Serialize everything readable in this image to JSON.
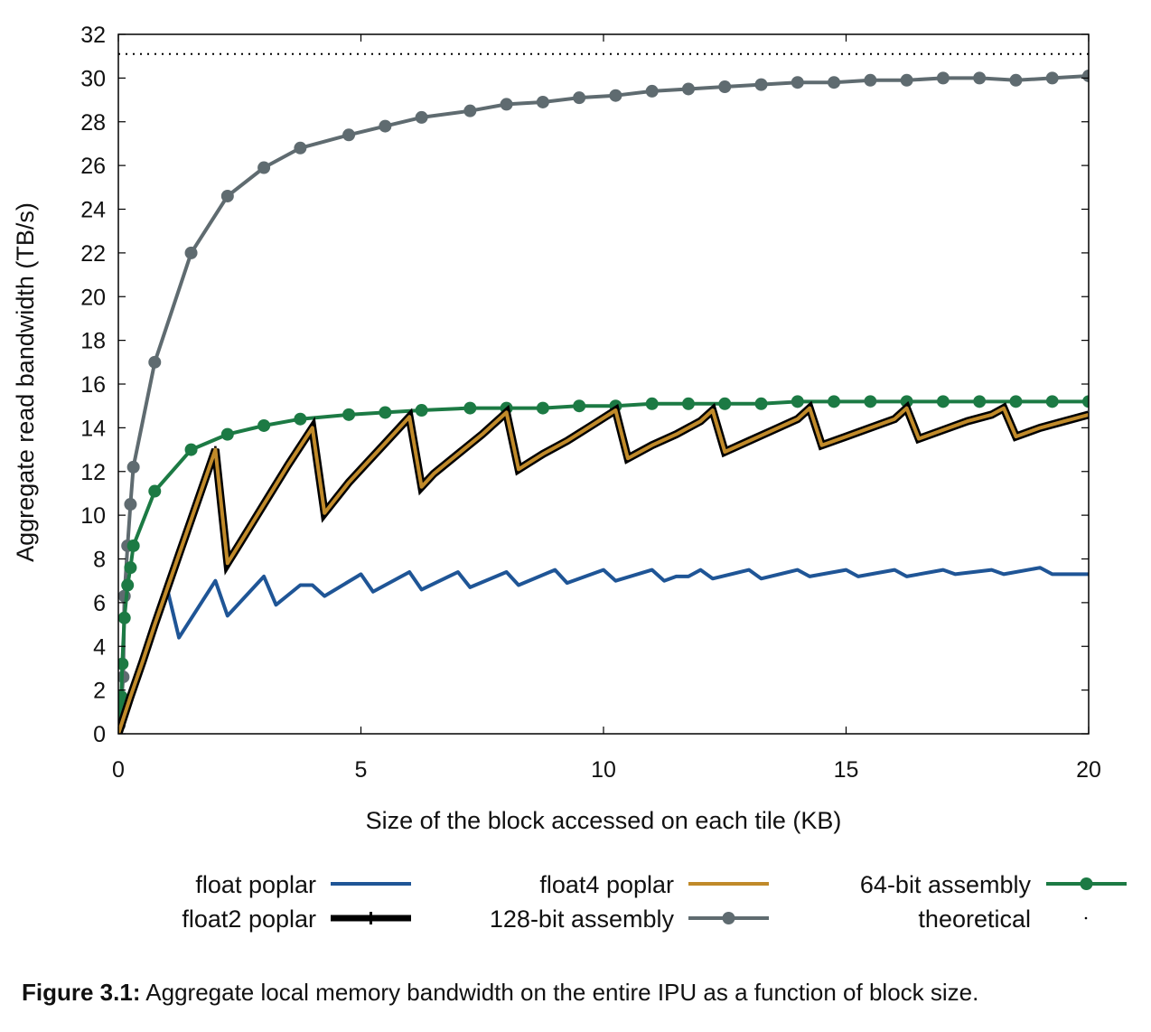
{
  "chart_data": {
    "type": "line",
    "xlabel": "Size of the block accessed on each tile (KB)",
    "ylabel": "Aggregate read bandwidth (TB/s)",
    "xlim": [
      0,
      20
    ],
    "ylim": [
      0,
      32
    ],
    "x_ticks": [
      "0",
      "5",
      "10",
      "15",
      "20"
    ],
    "y_ticks": [
      "0",
      "2",
      "4",
      "6",
      "8",
      "10",
      "12",
      "14",
      "16",
      "18",
      "20",
      "22",
      "24",
      "26",
      "28",
      "30",
      "32"
    ],
    "grid": false,
    "legend_position": "bottom",
    "series": [
      {
        "name": "float  poplar",
        "color": "#1f5596",
        "marker": "none",
        "points": [
          [
            0,
            0
          ],
          [
            0.25,
            1.7
          ],
          [
            0.5,
            3.4
          ],
          [
            0.75,
            5.1
          ],
          [
            1.0,
            6.7
          ],
          [
            1.25,
            4.4
          ],
          [
            2.0,
            7.0
          ],
          [
            2.25,
            5.4
          ],
          [
            3.0,
            7.2
          ],
          [
            3.25,
            5.9
          ],
          [
            3.75,
            6.8
          ],
          [
            4.0,
            6.8
          ],
          [
            4.25,
            6.3
          ],
          [
            5.0,
            7.3
          ],
          [
            5.25,
            6.5
          ],
          [
            6.0,
            7.4
          ],
          [
            6.25,
            6.6
          ],
          [
            7.0,
            7.4
          ],
          [
            7.25,
            6.7
          ],
          [
            8.0,
            7.4
          ],
          [
            8.25,
            6.8
          ],
          [
            9.0,
            7.5
          ],
          [
            9.25,
            6.9
          ],
          [
            10.0,
            7.5
          ],
          [
            10.25,
            7.0
          ],
          [
            11.0,
            7.5
          ],
          [
            11.25,
            7.0
          ],
          [
            11.5,
            7.2
          ],
          [
            11.75,
            7.2
          ],
          [
            12.0,
            7.5
          ],
          [
            12.25,
            7.1
          ],
          [
            13.0,
            7.5
          ],
          [
            13.25,
            7.1
          ],
          [
            14.0,
            7.5
          ],
          [
            14.25,
            7.2
          ],
          [
            15.0,
            7.5
          ],
          [
            15.25,
            7.2
          ],
          [
            16.0,
            7.5
          ],
          [
            16.25,
            7.2
          ],
          [
            17.0,
            7.5
          ],
          [
            17.25,
            7.3
          ],
          [
            18.0,
            7.5
          ],
          [
            18.25,
            7.3
          ],
          [
            19.0,
            7.6
          ],
          [
            19.25,
            7.3
          ],
          [
            20.0,
            7.3
          ]
        ]
      },
      {
        "name": "float2 poplar",
        "color": "#000000",
        "marker": "plus",
        "points": [
          [
            0,
            0
          ],
          [
            0.25,
            1.7
          ],
          [
            0.5,
            3.3
          ],
          [
            0.75,
            5.0
          ],
          [
            1.0,
            6.6
          ],
          [
            1.25,
            8.2
          ],
          [
            1.5,
            9.8
          ],
          [
            1.75,
            11.4
          ],
          [
            2.0,
            13.0
          ],
          [
            2.25,
            7.8
          ],
          [
            2.5,
            8.7
          ],
          [
            2.75,
            9.6
          ],
          [
            3.0,
            10.5
          ],
          [
            3.25,
            11.4
          ],
          [
            3.5,
            12.3
          ],
          [
            4.0,
            14.0
          ],
          [
            4.25,
            10.1
          ],
          [
            4.5,
            10.8
          ],
          [
            4.75,
            11.5
          ],
          [
            5.0,
            12.1
          ],
          [
            5.5,
            13.3
          ],
          [
            6.0,
            14.5
          ],
          [
            6.25,
            11.3
          ],
          [
            6.5,
            11.9
          ],
          [
            7.0,
            12.8
          ],
          [
            7.5,
            13.7
          ],
          [
            8.0,
            14.7
          ],
          [
            8.25,
            12.1
          ],
          [
            8.75,
            12.8
          ],
          [
            9.25,
            13.4
          ],
          [
            9.75,
            14.1
          ],
          [
            10.25,
            14.8
          ],
          [
            10.5,
            12.6
          ],
          [
            11.0,
            13.2
          ],
          [
            11.5,
            13.7
          ],
          [
            12.0,
            14.3
          ],
          [
            12.25,
            14.8
          ],
          [
            12.5,
            12.9
          ],
          [
            13.0,
            13.4
          ],
          [
            13.5,
            13.9
          ],
          [
            14.0,
            14.4
          ],
          [
            14.25,
            14.9
          ],
          [
            14.5,
            13.2
          ],
          [
            15.0,
            13.6
          ],
          [
            15.5,
            14.0
          ],
          [
            16.0,
            14.4
          ],
          [
            16.25,
            14.9
          ],
          [
            16.5,
            13.5
          ],
          [
            17.0,
            13.9
          ],
          [
            17.5,
            14.3
          ],
          [
            18.0,
            14.6
          ],
          [
            18.25,
            14.9
          ],
          [
            18.5,
            13.6
          ],
          [
            19.0,
            14.0
          ],
          [
            19.5,
            14.3
          ],
          [
            20.0,
            14.6
          ]
        ]
      },
      {
        "name": "float4 poplar",
        "color": "#c08a2a",
        "marker": "none",
        "points": [
          [
            0,
            0
          ],
          [
            0.25,
            1.7
          ],
          [
            0.5,
            3.3
          ],
          [
            0.75,
            5.0
          ],
          [
            1.0,
            6.6
          ],
          [
            1.25,
            8.2
          ],
          [
            1.5,
            9.8
          ],
          [
            1.75,
            11.4
          ],
          [
            2.0,
            13.0
          ],
          [
            2.25,
            7.8
          ],
          [
            2.5,
            8.7
          ],
          [
            2.75,
            9.6
          ],
          [
            3.0,
            10.5
          ],
          [
            3.25,
            11.4
          ],
          [
            3.5,
            12.3
          ],
          [
            4.0,
            14.0
          ],
          [
            4.25,
            10.1
          ],
          [
            4.5,
            10.8
          ],
          [
            4.75,
            11.5
          ],
          [
            5.0,
            12.1
          ],
          [
            5.5,
            13.3
          ],
          [
            6.0,
            14.5
          ],
          [
            6.25,
            11.3
          ],
          [
            6.5,
            11.9
          ],
          [
            7.0,
            12.8
          ],
          [
            7.5,
            13.7
          ],
          [
            8.0,
            14.7
          ],
          [
            8.25,
            12.1
          ],
          [
            8.75,
            12.8
          ],
          [
            9.25,
            13.4
          ],
          [
            9.75,
            14.1
          ],
          [
            10.25,
            14.8
          ],
          [
            10.5,
            12.6
          ],
          [
            11.0,
            13.2
          ],
          [
            11.5,
            13.7
          ],
          [
            12.0,
            14.3
          ],
          [
            12.25,
            14.8
          ],
          [
            12.5,
            12.9
          ],
          [
            13.0,
            13.4
          ],
          [
            13.5,
            13.9
          ],
          [
            14.0,
            14.4
          ],
          [
            14.25,
            14.9
          ],
          [
            14.5,
            13.2
          ],
          [
            15.0,
            13.6
          ],
          [
            15.5,
            14.0
          ],
          [
            16.0,
            14.4
          ],
          [
            16.25,
            14.9
          ],
          [
            16.5,
            13.5
          ],
          [
            17.0,
            13.9
          ],
          [
            17.5,
            14.3
          ],
          [
            18.0,
            14.6
          ],
          [
            18.25,
            14.9
          ],
          [
            18.5,
            13.6
          ],
          [
            19.0,
            14.0
          ],
          [
            19.5,
            14.3
          ],
          [
            20.0,
            14.6
          ]
        ]
      },
      {
        "name": "128-bit assembly",
        "color": "#5f6b70",
        "marker": "circle",
        "points": [
          [
            0,
            0
          ],
          [
            0.02,
            0.4
          ],
          [
            0.04,
            0.9
          ],
          [
            0.06,
            1.4
          ],
          [
            0.1,
            2.6
          ],
          [
            0.125,
            6.3
          ],
          [
            0.19,
            8.6
          ],
          [
            0.25,
            10.5
          ],
          [
            0.31,
            12.2
          ],
          [
            0.75,
            17.0
          ],
          [
            1.5,
            22.0
          ],
          [
            2.25,
            24.6
          ],
          [
            3.0,
            25.9
          ],
          [
            3.75,
            26.8
          ],
          [
            4.75,
            27.4
          ],
          [
            5.5,
            27.8
          ],
          [
            6.25,
            28.2
          ],
          [
            7.25,
            28.5
          ],
          [
            8.0,
            28.8
          ],
          [
            8.75,
            28.9
          ],
          [
            9.5,
            29.1
          ],
          [
            10.25,
            29.2
          ],
          [
            11.0,
            29.4
          ],
          [
            11.75,
            29.5
          ],
          [
            12.5,
            29.6
          ],
          [
            13.25,
            29.7
          ],
          [
            14.0,
            29.8
          ],
          [
            14.75,
            29.8
          ],
          [
            15.5,
            29.9
          ],
          [
            16.25,
            29.9
          ],
          [
            17.0,
            30.0
          ],
          [
            17.75,
            30.0
          ],
          [
            18.5,
            29.9
          ],
          [
            19.25,
            30.0
          ],
          [
            20.0,
            30.1
          ]
        ]
      },
      {
        "name": "64-bit assembly",
        "color": "#1c7a44",
        "marker": "circle",
        "points": [
          [
            0,
            0
          ],
          [
            0.02,
            0.6
          ],
          [
            0.04,
            1.2
          ],
          [
            0.06,
            1.7
          ],
          [
            0.08,
            3.2
          ],
          [
            0.125,
            5.3
          ],
          [
            0.19,
            6.8
          ],
          [
            0.25,
            7.6
          ],
          [
            0.31,
            8.6
          ],
          [
            0.75,
            11.1
          ],
          [
            1.5,
            13.0
          ],
          [
            2.25,
            13.7
          ],
          [
            3.0,
            14.1
          ],
          [
            3.75,
            14.4
          ],
          [
            4.75,
            14.6
          ],
          [
            5.5,
            14.7
          ],
          [
            6.25,
            14.8
          ],
          [
            7.25,
            14.9
          ],
          [
            8.0,
            14.9
          ],
          [
            8.75,
            14.9
          ],
          [
            9.5,
            15.0
          ],
          [
            10.25,
            15.0
          ],
          [
            11.0,
            15.1
          ],
          [
            11.75,
            15.1
          ],
          [
            12.5,
            15.1
          ],
          [
            13.25,
            15.1
          ],
          [
            14.0,
            15.2
          ],
          [
            14.75,
            15.2
          ],
          [
            15.5,
            15.2
          ],
          [
            16.25,
            15.2
          ],
          [
            17.0,
            15.2
          ],
          [
            17.75,
            15.2
          ],
          [
            18.5,
            15.2
          ],
          [
            19.25,
            15.2
          ],
          [
            20.0,
            15.2
          ]
        ]
      },
      {
        "name": "theoretical",
        "color": "#000000",
        "marker": "dot",
        "points": [
          [
            0,
            31.1
          ],
          [
            20,
            31.1
          ]
        ]
      }
    ]
  },
  "caption": {
    "label": "Figure 3.1:",
    "text": " Aggregate local memory bandwidth on the entire IPU as a function of block size."
  }
}
